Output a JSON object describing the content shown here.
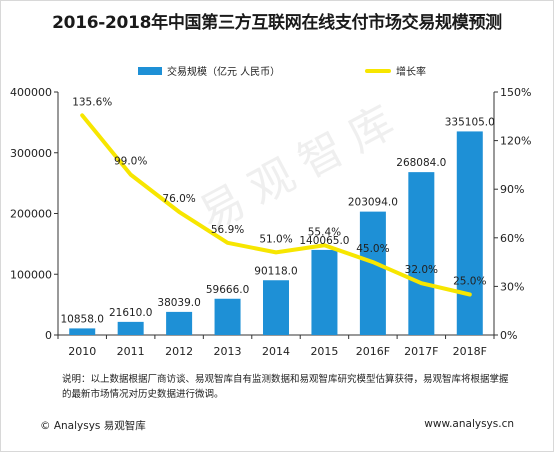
{
  "title": "2016-2018年中国第三方互联网在线支付市场交易规模预测",
  "watermark": "易观智库",
  "legend": {
    "bar_label": "交易规模（亿元 人民币）",
    "line_label": "增长率"
  },
  "colors": {
    "bar": "#1e90d6",
    "line": "#f7e600",
    "axis": "#333333"
  },
  "chart_data": {
    "type": "bar",
    "title": "2016-2018年中国第三方互联网在线支付市场交易规模预测",
    "categories": [
      "2010",
      "2011",
      "2012",
      "2013",
      "2014",
      "2015",
      "2016F",
      "2017F",
      "2018F"
    ],
    "series": [
      {
        "name": "交易规模（亿元 人民币）",
        "type": "bar",
        "axis": "left",
        "values": [
          10858.0,
          21610.0,
          38039.0,
          59666.0,
          90118.0,
          140065.0,
          203094.0,
          268084.0,
          335105.0
        ],
        "labels": [
          "10858.0",
          "21610.0",
          "38039.0",
          "59666.0",
          "90118.0",
          "140065.0",
          "203094.0",
          "268084.0",
          "335105.0"
        ]
      },
      {
        "name": "增长率",
        "type": "line",
        "axis": "right",
        "values": [
          135.6,
          99.0,
          76.0,
          56.9,
          51.0,
          55.4,
          45.0,
          32.0,
          25.0
        ],
        "labels": [
          "135.6%",
          "99.0%",
          "76.0%",
          "56.9%",
          "51.0%",
          "55.4%",
          "45.0%",
          "32.0%",
          "25.0%"
        ]
      }
    ],
    "y_left": {
      "min": 0,
      "max": 400000,
      "ticks": [
        "0",
        "100000",
        "200000",
        "300000",
        "400000"
      ]
    },
    "y_right": {
      "min": 0,
      "max": 150,
      "ticks": [
        "0%",
        "30%",
        "60%",
        "90%",
        "120%",
        "150%"
      ]
    },
    "grid": false,
    "legend_position": "top"
  },
  "note": "说明：以上数据根据厂商访谈、易观智库自有监测数据和易观智库研究模型估算获得，易观智库将根据掌握的最新市场情况对历史数据进行微调。",
  "footer": {
    "left": "© Analysys 易观智库",
    "right": "www.analysys.cn"
  }
}
